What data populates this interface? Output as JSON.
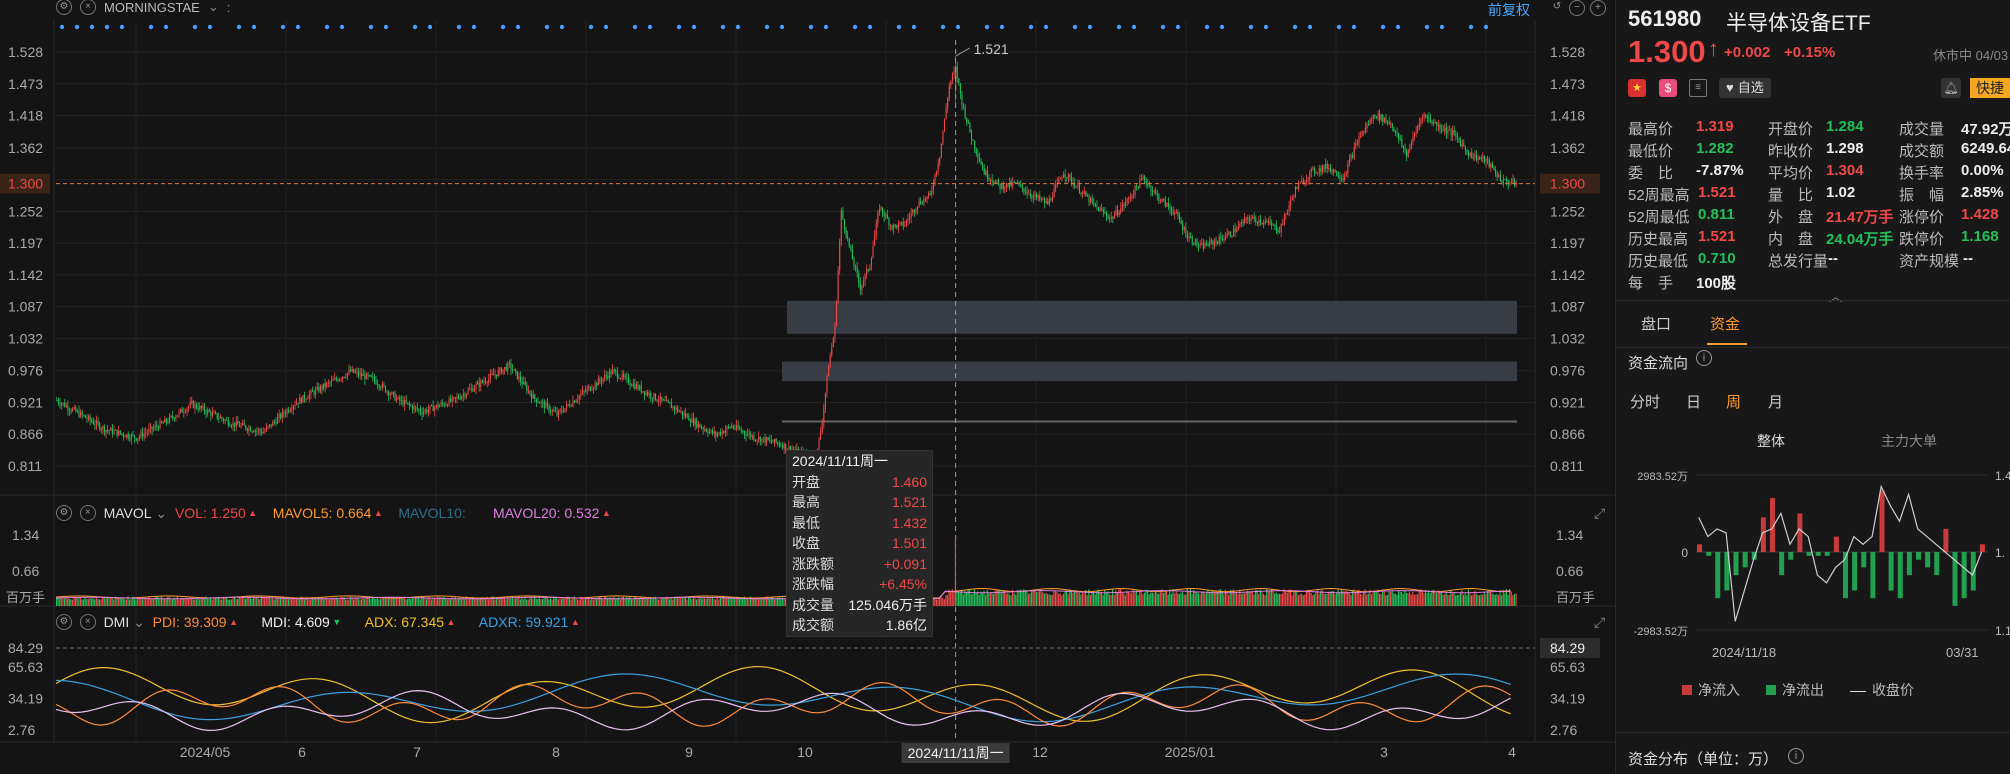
{
  "header": {
    "ticker_label": "MORNINGSTAE",
    "adjust_label": "前复权"
  },
  "price_axis": {
    "ticks": [
      "1.528",
      "1.473",
      "1.418",
      "1.362",
      "1.307",
      "1.252",
      "1.197",
      "1.142",
      "1.087",
      "1.032",
      "0.976",
      "0.921",
      "0.866",
      "0.811"
    ],
    "current_marker": "1.300",
    "peak_label": "1.521"
  },
  "volume_panel": {
    "name": "MAVOL",
    "vol": {
      "label": "VOL:",
      "value": "1.250",
      "color": "#f04848"
    },
    "mavol5": {
      "label": "MAVOL5:",
      "value": "0.664",
      "color": "#ff9a2e"
    },
    "mavol10": {
      "label": "MAVOL10:",
      "value": "",
      "color": "#2f6f8a"
    },
    "mavol20": {
      "label": "MAVOL20:",
      "value": "0.532",
      "color": "#e07fe0"
    },
    "ticks": [
      "1.34",
      "0.66"
    ],
    "unit": "百万手"
  },
  "dmi_panel": {
    "name": "DMI",
    "pdi": {
      "label": "PDI:",
      "value": "39.309",
      "color": "#ff8a3a"
    },
    "mdi": {
      "label": "MDI:",
      "value": "4.609",
      "color": "#f0f0f0"
    },
    "adx": {
      "label": "ADX:",
      "value": "67.345",
      "color": "#f0c030"
    },
    "adxr": {
      "label": "ADXR:",
      "value": "59.921",
      "color": "#3aa0e0"
    },
    "ticks": [
      "84.29",
      "65.63",
      "34.19",
      "2.76"
    ]
  },
  "x_axis": {
    "labels": [
      "2024/05",
      "6",
      "7",
      "8",
      "9",
      "10",
      "12",
      "2025/01",
      "3",
      "4"
    ],
    "crosshair_label": "2024/11/11周一"
  },
  "tooltip": {
    "date": "2024/11/11周一",
    "rows": [
      {
        "label": "开盘",
        "value": "1.460",
        "color": "red"
      },
      {
        "label": "最高",
        "value": "1.521",
        "color": "red"
      },
      {
        "label": "最低",
        "value": "1.432",
        "color": "red"
      },
      {
        "label": "收盘",
        "value": "1.501",
        "color": "red"
      },
      {
        "label": "涨跌额",
        "value": "+0.091",
        "color": "red"
      },
      {
        "label": "涨跌幅",
        "value": "+6.45%",
        "color": "red"
      },
      {
        "label": "成交量",
        "value": "125.046万手",
        "color": "white"
      },
      {
        "label": "成交额",
        "value": "1.86亿",
        "color": "white"
      }
    ]
  },
  "quote": {
    "code": "561980",
    "name": "半导体设备ETF",
    "price": "1.300",
    "change": "+0.002",
    "change_pct": "+0.15%",
    "status": "休市中 04/03",
    "watch_label": "自选",
    "quick_label": "快捷",
    "fields": [
      {
        "label": "最高价",
        "value": "1.319",
        "color": "red"
      },
      {
        "label": "开盘价",
        "value": "1.284",
        "color": "green"
      },
      {
        "label": "成交量",
        "value": "47.92万",
        "color": "white"
      },
      {
        "label": "最低价",
        "value": "1.282",
        "color": "green"
      },
      {
        "label": "昨收价",
        "value": "1.298",
        "color": "white"
      },
      {
        "label": "成交额",
        "value": "6249.64",
        "color": "white"
      },
      {
        "label": "委　比",
        "value": "-7.87%",
        "color": "white"
      },
      {
        "label": "平均价",
        "value": "1.304",
        "color": "red"
      },
      {
        "label": "换手率",
        "value": "0.00%",
        "color": "white"
      },
      {
        "label": "52周最高",
        "value": "1.521",
        "color": "red"
      },
      {
        "label": "量　比",
        "value": "1.02",
        "color": "white"
      },
      {
        "label": "振　幅",
        "value": "2.85%",
        "color": "white"
      },
      {
        "label": "52周最低",
        "value": "0.811",
        "color": "green"
      },
      {
        "label": "外　盘",
        "value": "21.47万手",
        "color": "red"
      },
      {
        "label": "涨停价",
        "value": "1.428",
        "color": "red"
      },
      {
        "label": "历史最高",
        "value": "1.521",
        "color": "red"
      },
      {
        "label": "内　盘",
        "value": "24.04万手",
        "color": "green"
      },
      {
        "label": "跌停价",
        "value": "1.168",
        "color": "green"
      },
      {
        "label": "历史最低",
        "value": "0.710",
        "color": "green"
      },
      {
        "label": "总发行量",
        "value": "--",
        "color": "white"
      },
      {
        "label": "资产规模",
        "value": "--",
        "color": "white"
      },
      {
        "label": "每　手",
        "value": "100股",
        "color": "white"
      }
    ]
  },
  "panel_tabs": {
    "tab1": "盘口",
    "tab2": "资金"
  },
  "fund_flow": {
    "title": "资金流向",
    "periods": [
      "分时",
      "日",
      "周",
      "月"
    ],
    "active_period": "周",
    "subtabs": {
      "whole": "整体",
      "main": "主力大单"
    },
    "y_top": "2983.52万",
    "y_zero": "0",
    "y_bottom": "-2983.52万",
    "x_start": "2024/11/18",
    "x_end": "03/31",
    "right_ticks": [
      "1.4",
      "1.",
      "1.1"
    ],
    "legend": {
      "in": "净流入",
      "out": "净流出",
      "close": "收盘价"
    },
    "distribution_title": "资金分布（单位：万）"
  },
  "colors": {
    "up": "#f04848",
    "down": "#22c05a",
    "blue": "#3aa0e0"
  }
}
